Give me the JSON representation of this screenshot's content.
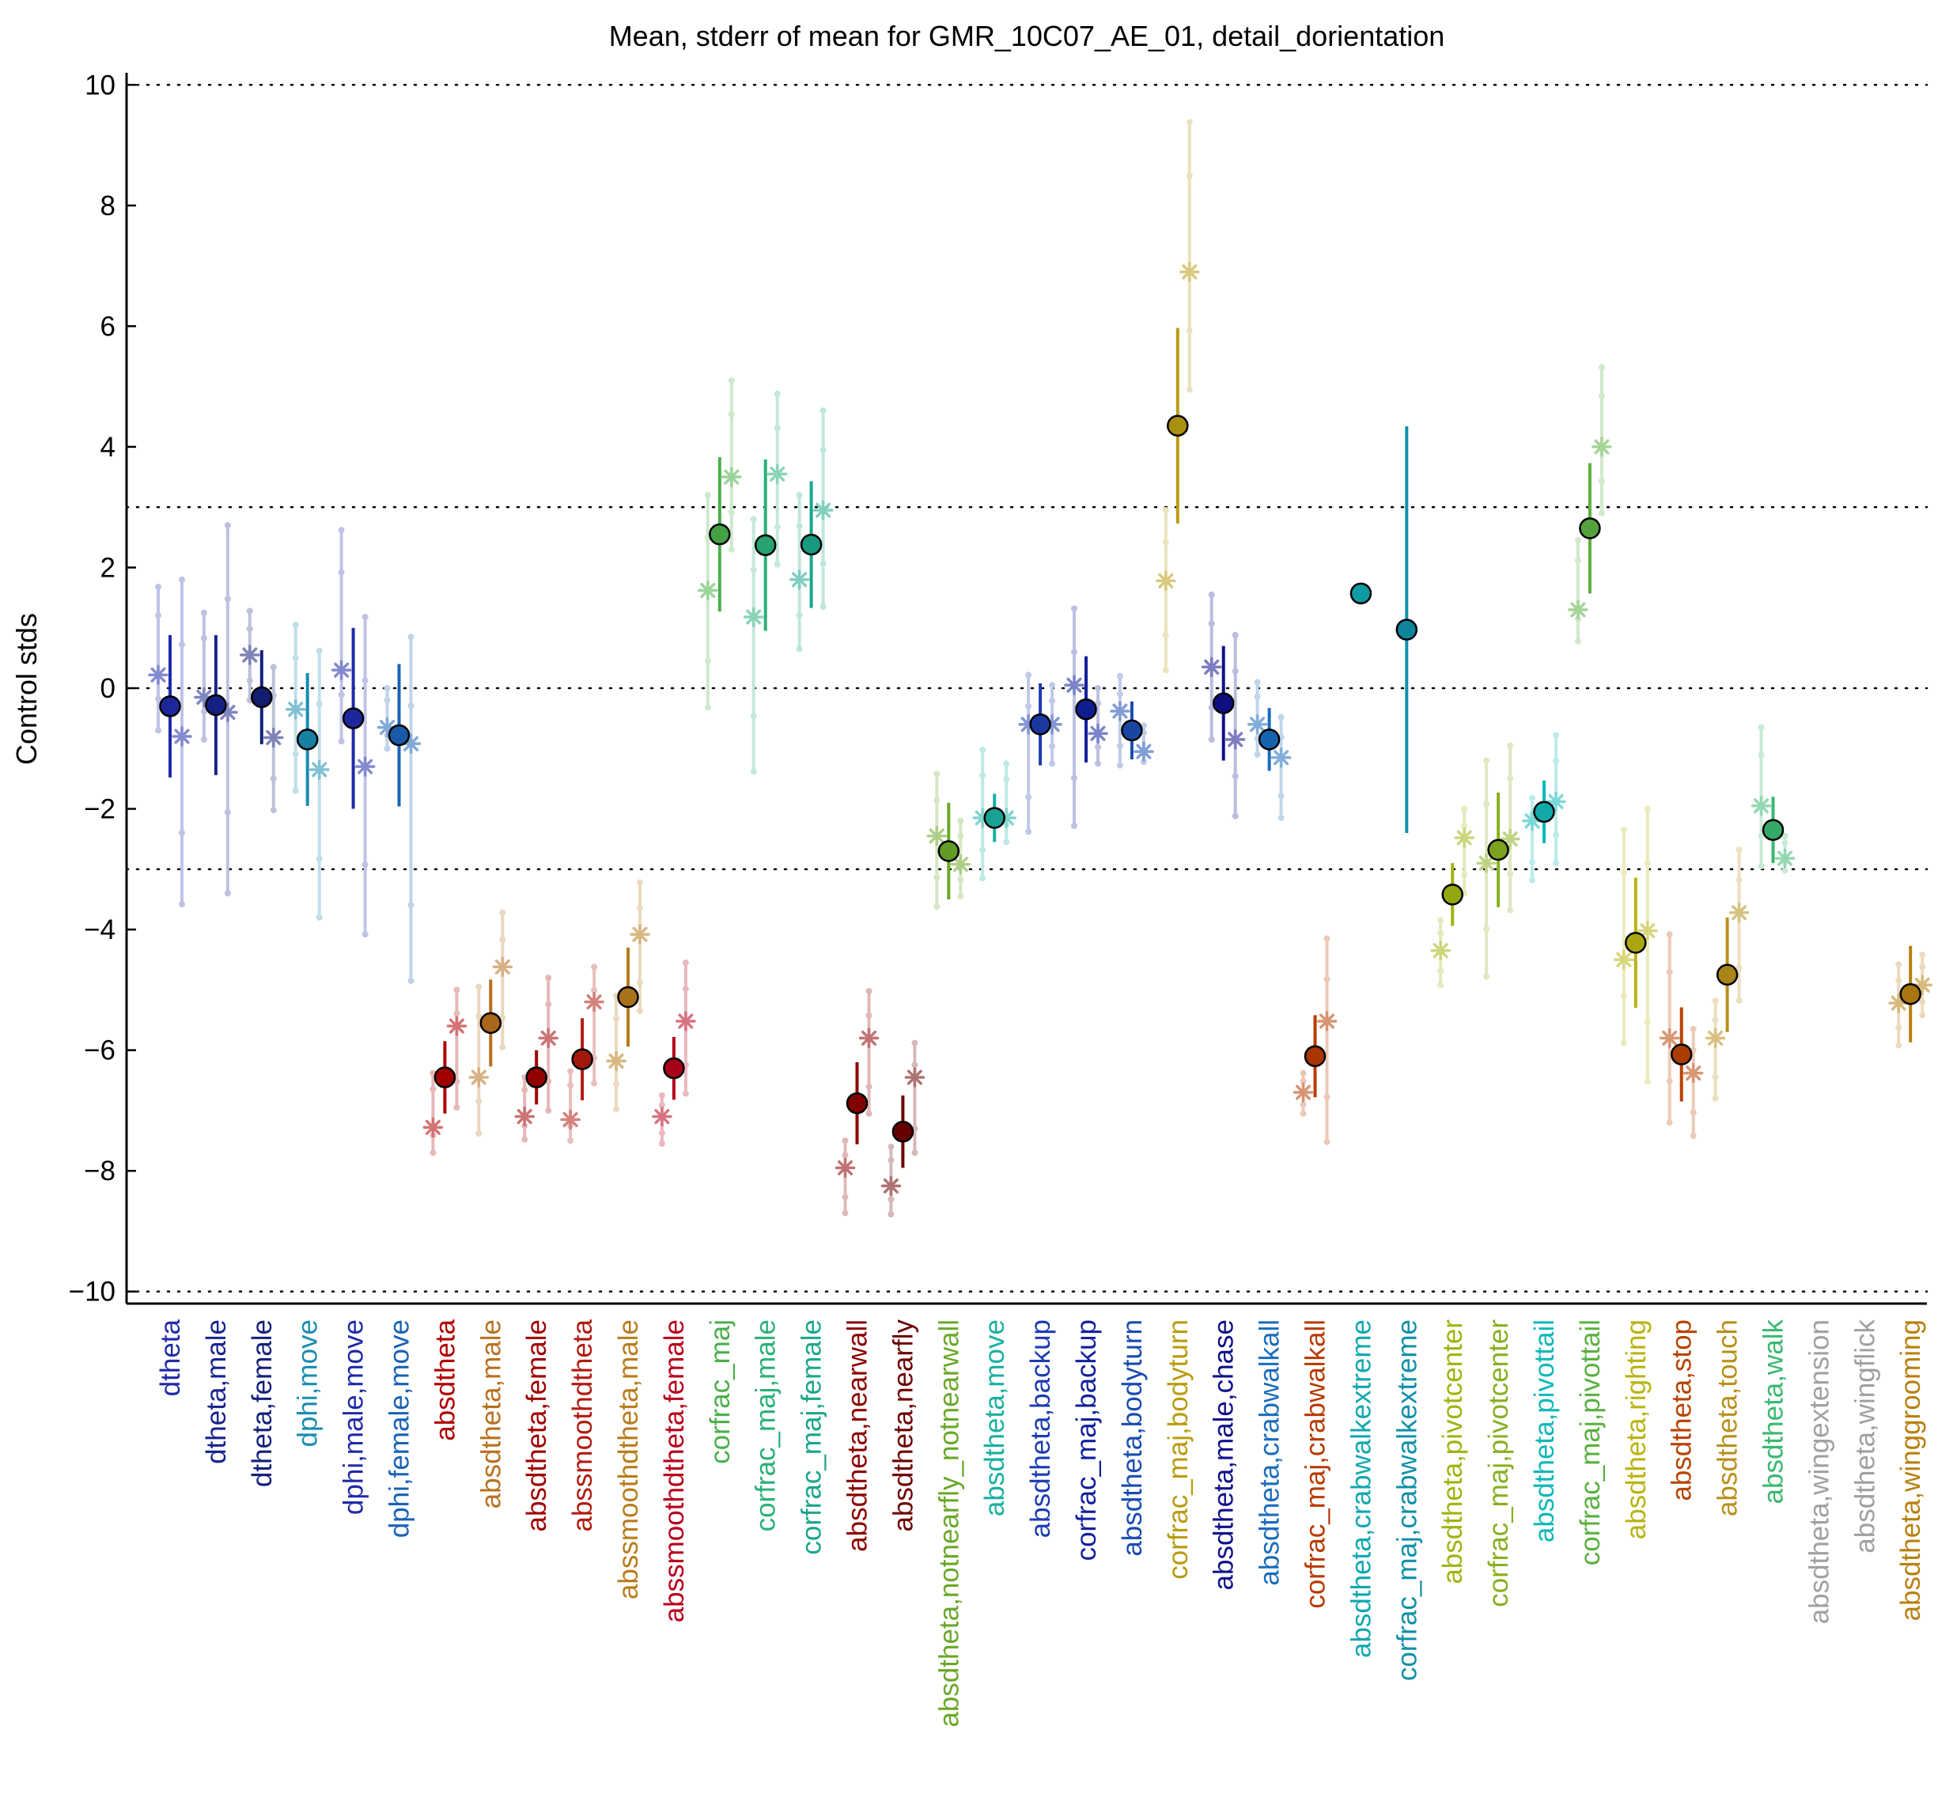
{
  "chart_data": {
    "type": "scatter",
    "title": "Mean, stderr of mean for GMR_10C07_AE_01, detail_dorientation",
    "ylabel": "Control stds",
    "xlabel": "",
    "ylim": [
      -10.2,
      10.2
    ],
    "yticks": [
      10,
      8,
      6,
      4,
      2,
      0,
      -2,
      -4,
      -6,
      -8,
      -10
    ],
    "yticks_text": [
      "10",
      "8",
      "6",
      "4",
      "2",
      "0",
      "−2",
      "−4",
      "−6",
      "−8",
      "−10"
    ],
    "reference_lines": [
      10,
      3,
      0,
      -3,
      -10
    ],
    "grid": false,
    "legend": "none",
    "categories": [
      "dtheta",
      "dtheta,male",
      "dtheta,female",
      "dphi,move",
      "dphi,male,move",
      "dphi,female,move",
      "absdtheta",
      "absdtheta,male",
      "absdtheta,female",
      "abssmoothdtheta",
      "abssmoothdtheta,male",
      "abssmoothdtheta,female",
      "corfrac_maj",
      "corfrac_maj,male",
      "corfrac_maj,female",
      "absdtheta,nearwall",
      "absdtheta,nearfly",
      "absdtheta,notnearfly_notnearwall",
      "absdtheta,move",
      "absdtheta,backup",
      "corfrac_maj,backup",
      "absdtheta,bodyturn",
      "corfrac_maj,bodyturn",
      "absdtheta,male,chase",
      "absdtheta,crabwalkall",
      "corfrac_maj,crabwalkall",
      "absdtheta,crabwalkextreme",
      "corfrac_maj,crabwalkextreme",
      "absdtheta,pivotcenter",
      "corfrac_maj,pivotcenter",
      "absdtheta,pivottail",
      "corfrac_maj,pivottail",
      "absdtheta,righting",
      "absdtheta,stop",
      "absdtheta,touch",
      "absdtheta,walk",
      "absdtheta,wingextension",
      "absdtheta,wingflick",
      "absdtheta,winggrooming"
    ],
    "colors": [
      "#1f2aa8",
      "#18238f",
      "#14207a",
      "#1a8cb0",
      "#1f2aa8",
      "#1a62b4",
      "#b00000",
      "#b8701e",
      "#a00000",
      "#b01a10",
      "#b87c1a",
      "#b8001c",
      "#4ab04a",
      "#2ab07a",
      "#1aa68a",
      "#8c0000",
      "#6e0000",
      "#6aa828",
      "#1ab0a0",
      "#1c3cb0",
      "#10209c",
      "#1a4cb0",
      "#b89c10",
      "#10108a",
      "#1a6cbc",
      "#b83a00",
      "#10a8b0",
      "#1090a8",
      "#a0b410",
      "#88b020",
      "#10b8b8",
      "#5ab040",
      "#b8b410",
      "#b84200",
      "#b8901a",
      "#3ab870",
      "#a0a0a0",
      "#a0a0a0",
      "#b88010"
    ],
    "mean": [
      -0.3,
      -0.28,
      -0.15,
      -0.85,
      -0.5,
      -0.78,
      -6.45,
      -5.55,
      -6.45,
      -6.15,
      -5.12,
      -6.3,
      2.55,
      2.37,
      2.38,
      -6.88,
      -7.35,
      -2.7,
      -2.15,
      -0.6,
      -0.35,
      -0.7,
      4.35,
      -0.25,
      -0.85,
      -6.1,
      1.57,
      0.97,
      -3.42,
      -2.68,
      -2.05,
      2.65,
      -4.22,
      -6.07,
      -4.75,
      -2.35,
      null,
      null,
      -5.07
    ],
    "stderr": [
      1.18,
      1.16,
      0.78,
      1.1,
      1.5,
      1.18,
      0.6,
      0.72,
      0.45,
      0.68,
      0.82,
      0.52,
      1.28,
      1.42,
      1.05,
      0.68,
      0.6,
      0.8,
      0.4,
      0.68,
      0.88,
      0.48,
      1.62,
      0.95,
      0.52,
      0.68,
      0.05,
      3.37,
      0.52,
      0.95,
      0.52,
      1.08,
      1.08,
      0.78,
      0.95,
      0.55,
      null,
      null,
      0.8
    ],
    "control_a": [
      {
        "mean": 0.22,
        "lo": -0.7,
        "hi": 1.68
      },
      {
        "mean": -0.15,
        "lo": -0.85,
        "hi": 1.25
      },
      {
        "mean": 0.55,
        "lo": -0.2,
        "hi": 1.28
      },
      {
        "mean": -0.35,
        "lo": -1.7,
        "hi": 1.05
      },
      {
        "mean": 0.3,
        "lo": -0.88,
        "hi": 2.62
      },
      {
        "mean": -0.65,
        "lo": -1.0,
        "hi": 0.0
      },
      {
        "mean": -7.28,
        "lo": -7.7,
        "hi": -6.38
      },
      {
        "mean": -6.45,
        "lo": -7.38,
        "hi": -4.95
      },
      {
        "mean": -7.1,
        "lo": -7.48,
        "hi": -6.45
      },
      {
        "mean": -7.15,
        "lo": -7.5,
        "hi": -6.35
      },
      {
        "mean": -6.18,
        "lo": -6.98,
        "hi": -5.1
      },
      {
        "mean": -7.1,
        "lo": -7.55,
        "hi": -6.75
      },
      {
        "mean": 1.62,
        "lo": -0.32,
        "hi": 3.2
      },
      {
        "mean": 1.18,
        "lo": -1.38,
        "hi": 2.8
      },
      {
        "mean": 1.8,
        "lo": 0.65,
        "hi": 3.2
      },
      {
        "mean": -7.95,
        "lo": -8.7,
        "hi": -7.5
      },
      {
        "mean": -8.25,
        "lo": -8.72,
        "hi": -7.6
      },
      {
        "mean": -2.45,
        "lo": -3.62,
        "hi": -1.42
      },
      {
        "mean": -2.15,
        "lo": -3.15,
        "hi": -1.02
      },
      {
        "mean": -0.6,
        "lo": -2.38,
        "hi": 0.22
      },
      {
        "mean": 0.05,
        "lo": -2.28,
        "hi": 1.32
      },
      {
        "mean": -0.38,
        "lo": -1.28,
        "hi": 0.2
      },
      {
        "mean": 1.78,
        "lo": 0.3,
        "hi": 2.95
      },
      {
        "mean": 0.35,
        "lo": -0.85,
        "hi": 1.55
      },
      {
        "mean": -0.6,
        "lo": -1.1,
        "hi": 0.1
      },
      {
        "mean": -6.7,
        "lo": -7.05,
        "hi": -6.38
      },
      null,
      null,
      {
        "mean": -4.35,
        "lo": -4.92,
        "hi": -3.85
      },
      {
        "mean": -2.9,
        "lo": -4.78,
        "hi": -1.2
      },
      {
        "mean": -2.2,
        "lo": -3.18,
        "hi": -1.82
      },
      {
        "mean": 1.3,
        "lo": 0.78,
        "hi": 2.45
      },
      {
        "mean": -4.5,
        "lo": -5.88,
        "hi": -2.35
      },
      {
        "mean": -5.8,
        "lo": -7.2,
        "hi": -4.08
      },
      {
        "mean": -5.8,
        "lo": -6.8,
        "hi": -5.18
      },
      {
        "mean": -1.95,
        "lo": -2.95,
        "hi": -0.65
      },
      null,
      null,
      {
        "mean": -5.22,
        "lo": -5.92,
        "hi": -4.58
      }
    ],
    "control_b": [
      {
        "mean": -0.8,
        "lo": -3.58,
        "hi": 1.8
      },
      {
        "mean": -0.4,
        "lo": -3.4,
        "hi": 2.7
      },
      {
        "mean": -0.82,
        "lo": -2.02,
        "hi": 0.35
      },
      {
        "mean": -1.35,
        "lo": -3.8,
        "hi": 0.62
      },
      {
        "mean": -1.3,
        "lo": -4.08,
        "hi": 1.18
      },
      {
        "mean": -0.92,
        "lo": -4.85,
        "hi": 0.85
      },
      {
        "mean": -5.6,
        "lo": -6.95,
        "hi": -5.0
      },
      {
        "mean": -4.62,
        "lo": -5.95,
        "hi": -3.72
      },
      {
        "mean": -5.8,
        "lo": -7.0,
        "hi": -4.8
      },
      {
        "mean": -5.2,
        "lo": -6.55,
        "hi": -4.62
      },
      {
        "mean": -4.08,
        "lo": -5.35,
        "hi": -3.22
      },
      {
        "mean": -5.52,
        "lo": -6.72,
        "hi": -4.55
      },
      {
        "mean": 3.5,
        "lo": 2.3,
        "hi": 5.1
      },
      {
        "mean": 3.55,
        "lo": 2.05,
        "hi": 4.88
      },
      {
        "mean": 2.95,
        "lo": 1.35,
        "hi": 4.6
      },
      {
        "mean": -5.8,
        "lo": -7.05,
        "hi": -5.02
      },
      {
        "mean": -6.45,
        "lo": -7.7,
        "hi": -5.88
      },
      {
        "mean": -2.92,
        "lo": -3.45,
        "hi": -2.2
      },
      {
        "mean": -2.15,
        "lo": -2.55,
        "hi": -1.25
      },
      {
        "mean": -0.6,
        "lo": -1.25,
        "hi": 0.05
      },
      {
        "mean": -0.75,
        "lo": -1.25,
        "hi": 0.0
      },
      {
        "mean": -1.05,
        "lo": -1.22,
        "hi": -0.62
      },
      {
        "mean": 6.9,
        "lo": 4.95,
        "hi": 9.38
      },
      {
        "mean": -0.85,
        "lo": -2.12,
        "hi": 0.88
      },
      {
        "mean": -1.15,
        "lo": -2.15,
        "hi": -0.48
      },
      {
        "mean": -5.52,
        "lo": -7.52,
        "hi": -4.15
      },
      null,
      null,
      {
        "mean": -2.48,
        "lo": -3.4,
        "hi": -2.0
      },
      {
        "mean": -2.5,
        "lo": -3.68,
        "hi": -0.95
      },
      {
        "mean": -1.88,
        "lo": -2.9,
        "hi": -0.78
      },
      {
        "mean": 4.0,
        "lo": 2.9,
        "hi": 5.32
      },
      {
        "mean": -4.02,
        "lo": -6.52,
        "hi": -2.0
      },
      {
        "mean": -6.38,
        "lo": -7.42,
        "hi": -5.65
      },
      {
        "mean": -3.72,
        "lo": -5.18,
        "hi": -2.68
      },
      {
        "mean": -2.82,
        "lo": -3.02,
        "hi": -2.45
      },
      null,
      null,
      {
        "mean": -4.92,
        "lo": -5.42,
        "hi": -4.42
      }
    ]
  }
}
